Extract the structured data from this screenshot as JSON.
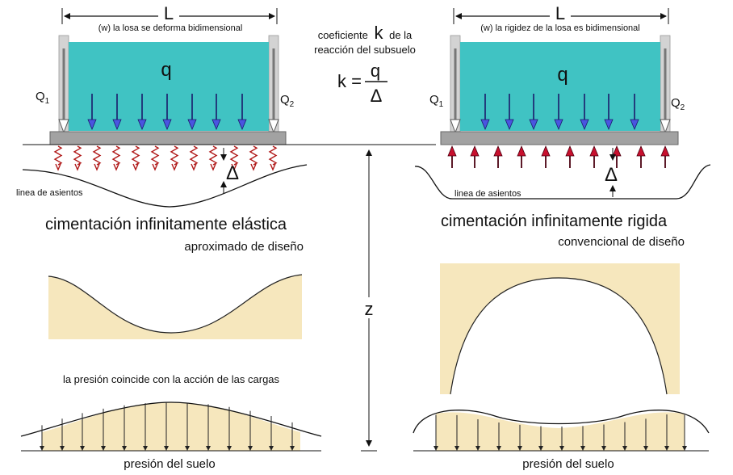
{
  "center": {
    "formula_line1_prefix": "coeficiente",
    "formula_k": "k",
    "formula_line1_suffix": "de la",
    "formula_line2": "reacción del subsuelo",
    "formula_lhs": "k =",
    "formula_numerator": "q",
    "formula_denominator": "Δ",
    "z_label": "z"
  },
  "left": {
    "span_label": "L",
    "deform_note": "(w) la losa se deforma bidimensional",
    "load_label": "q",
    "q1_label": "Q",
    "q1_sub": "1",
    "q2_label": "Q",
    "q2_sub": "2",
    "delta_label": "Δ",
    "settlement_label": "linea de asientos",
    "title": "cimentación infinitamente elástica",
    "subtitle": "aproximado de diseño",
    "pressure_note": "la presión coincide con la  acción de las cargas",
    "soil_pressure_label": "presión del suelo"
  },
  "right": {
    "span_label": "L",
    "stiffness_note": "(w) la rigidez de la losa es bidimensional",
    "load_label": "q",
    "q1_label": "Q",
    "q1_sub": "1",
    "q2_label": "Q",
    "q2_sub": "2",
    "delta_label": "Δ",
    "settlement_label": "linea de asientos",
    "title": "cimentación infinitamente rigida",
    "subtitle": "convencional de diseño",
    "soil_pressure_label": "presión del suelo"
  },
  "colors": {
    "water": "#40c3c3",
    "slab": "#a2a2a2",
    "wall": "#d3d3d3",
    "sand": "#f6e7bd",
    "load_arrow": "#4a55e0",
    "reaction_arrow": "#c8102e",
    "spring": "#b01818"
  }
}
